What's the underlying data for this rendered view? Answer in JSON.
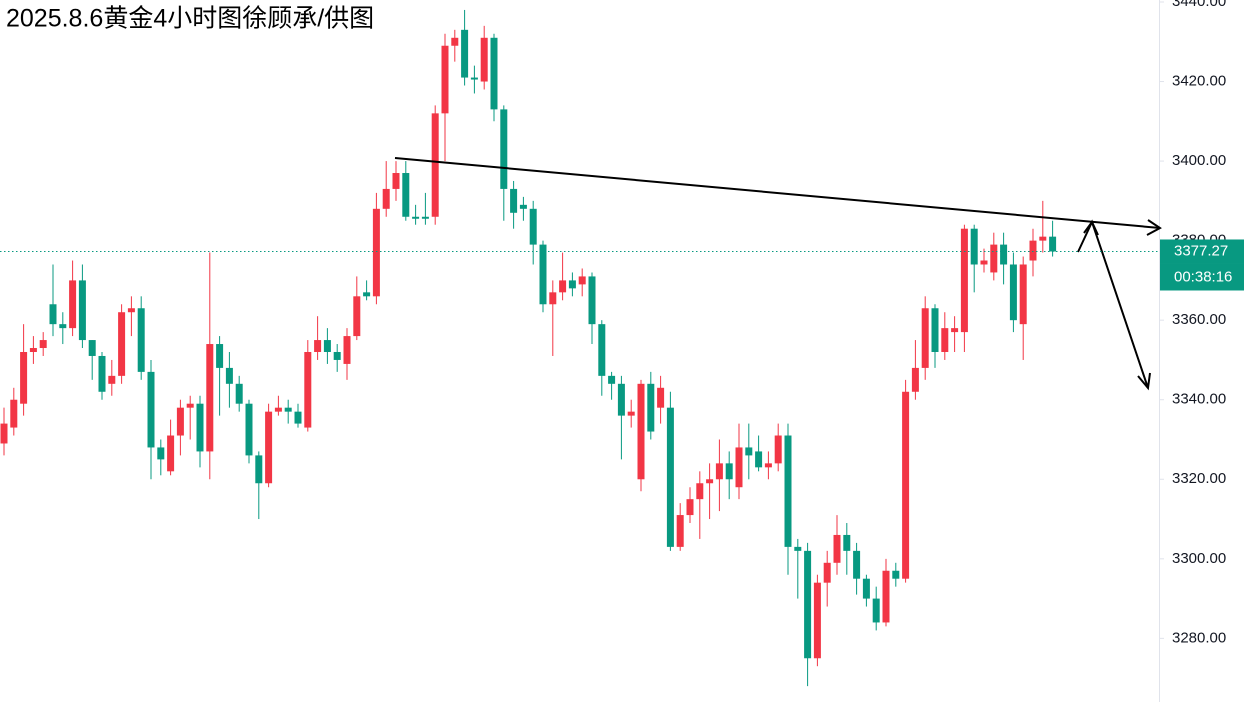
{
  "chart_data": {
    "type": "candlestick",
    "title": "2025.8.6黄金4小时图徐顾承/供图",
    "up_color": "#f23645",
    "down_color": "#089981",
    "ylim": [
      3264,
      3440.5
    ],
    "yticks": [
      {
        "value": 3280,
        "label": "3280.00"
      },
      {
        "value": 3300,
        "label": "3300.00"
      },
      {
        "value": 3320,
        "label": "3320.00"
      },
      {
        "value": 3340,
        "label": "3340.00"
      },
      {
        "value": 3360,
        "label": "3360.00"
      },
      {
        "value": 3380,
        "label": "3380.00"
      },
      {
        "value": 3400,
        "label": "3400.00"
      },
      {
        "value": 3420,
        "label": "3420.00"
      },
      {
        "value": 3440,
        "label": "3440.00"
      }
    ],
    "current_price": 3377.27,
    "countdown": "00:38:16",
    "open": [
      3329,
      3333,
      3339,
      3352,
      3353,
      3364,
      3359,
      3358,
      3370,
      3355,
      3351,
      3344,
      3346,
      3362,
      3363,
      3347,
      3328,
      3322,
      3331,
      3338,
      3339,
      3327,
      3354,
      3348,
      3344,
      3339,
      3326,
      3319,
      3337,
      3338,
      3337,
      3333,
      3352,
      3355,
      3352,
      3349,
      3356,
      3367,
      3366,
      3388,
      3393,
      3397,
      3386,
      3386,
      3386,
      3412,
      3429,
      3433,
      3421,
      3420,
      3431,
      3413,
      3393,
      3389,
      3388,
      3379,
      3364,
      3367,
      3370,
      3369,
      3371,
      3359,
      3346,
      3344,
      3336,
      3320,
      3344,
      3338,
      3338,
      3303,
      3311,
      3315,
      3319,
      3320,
      3324,
      3318,
      3328,
      3327,
      3323,
      3324,
      3331,
      3303,
      3302,
      3275,
      3294,
      3299,
      3306,
      3302,
      3295,
      3290,
      3284,
      3297,
      3295,
      3342,
      3348,
      3363,
      3352,
      3357,
      3357,
      3383,
      3374,
      3372,
      3379,
      3374,
      3359,
      3375,
      3380,
      3381
    ],
    "high": [
      3338,
      3343,
      3359,
      3356,
      3357,
      3374,
      3362,
      3375,
      3374,
      3355,
      3352,
      3350,
      3364,
      3366,
      3366,
      3350,
      3330,
      3335,
      3340,
      3341,
      3341,
      3377,
      3356,
      3352,
      3346,
      3340,
      3327,
      3339,
      3341,
      3340,
      3339,
      3355,
      3361,
      3358,
      3354,
      3358,
      3371,
      3370,
      3392,
      3400,
      3400,
      3400,
      3389,
      3392,
      3414,
      3432,
      3433,
      3438,
      3424,
      3434,
      3432,
      3414,
      3395,
      3391,
      3390,
      3380,
      3370,
      3377,
      3372,
      3373,
      3372,
      3360,
      3347,
      3346,
      3340,
      3345,
      3347,
      3346,
      3342,
      3314,
      3318,
      3322,
      3324,
      3330,
      3327,
      3334,
      3334,
      3331,
      3327,
      3334,
      3334,
      3305,
      3304,
      3296,
      3302,
      3311,
      3309,
      3304,
      3296,
      3293,
      3300,
      3299,
      3345,
      3355,
      3366,
      3364,
      3362,
      3361,
      3384,
      3384,
      3378,
      3382,
      3382,
      3377,
      3376,
      3383,
      3390,
      3385
    ],
    "low": [
      3326,
      3331,
      3336,
      3349,
      3351,
      3356,
      3354,
      3356,
      3353,
      3345,
      3340,
      3341,
      3344,
      3356,
      3345,
      3320,
      3321,
      3321,
      3326,
      3330,
      3323,
      3320,
      3336,
      3338,
      3337,
      3324,
      3310,
      3318,
      3336,
      3334,
      3333,
      3332,
      3350,
      3349,
      3347,
      3345,
      3355,
      3365,
      3364,
      3386,
      3390,
      3385,
      3384,
      3384,
      3384,
      3400,
      3425,
      3419,
      3417,
      3418,
      3410,
      3385,
      3383,
      3385,
      3374,
      3362,
      3351,
      3365,
      3366,
      3366,
      3354,
      3341,
      3340,
      3325,
      3333,
      3317,
      3330,
      3334,
      3302,
      3302,
      3309,
      3305,
      3310,
      3312,
      3315,
      3315,
      3320,
      3322,
      3320,
      3322,
      3296,
      3290,
      3268,
      3273,
      3288,
      3296,
      3296,
      3291,
      3288,
      3282,
      3283,
      3293,
      3294,
      3340,
      3345,
      3348,
      3350,
      3352,
      3352,
      3367,
      3372,
      3370,
      3369,
      3357,
      3350,
      3371,
      3377,
      3376
    ],
    "close": [
      3334,
      3340,
      3352,
      3353,
      3355,
      3359,
      3358,
      3370,
      3355,
      3351,
      3342,
      3346,
      3362,
      3363,
      3347,
      3328,
      3325,
      3331,
      3338,
      3339,
      3327,
      3354,
      3348,
      3344,
      3339,
      3326,
      3319,
      3337,
      3338,
      3337,
      3334,
      3352,
      3355,
      3352,
      3350,
      3356,
      3366,
      3366,
      3388,
      3393,
      3397,
      3386,
      3385.5,
      3385.5,
      3412,
      3429,
      3431,
      3421,
      3420.5,
      3431,
      3413,
      3393,
      3387,
      3388,
      3379,
      3364,
      3367,
      3370,
      3368,
      3371,
      3359,
      3346,
      3344,
      3336,
      3337,
      3344,
      3332,
      3343,
      3303,
      3311,
      3315,
      3319,
      3320,
      3324,
      3320,
      3328,
      3326,
      3323,
      3324,
      3331,
      3303,
      3302,
      3275,
      3294,
      3299,
      3306,
      3302,
      3295,
      3290,
      3284,
      3297,
      3295,
      3342,
      3348,
      3363,
      3352,
      3358,
      3358,
      3383,
      3374,
      3375,
      3379,
      3374,
      3360,
      3374,
      3380,
      3381,
      3377.27
    ]
  }
}
